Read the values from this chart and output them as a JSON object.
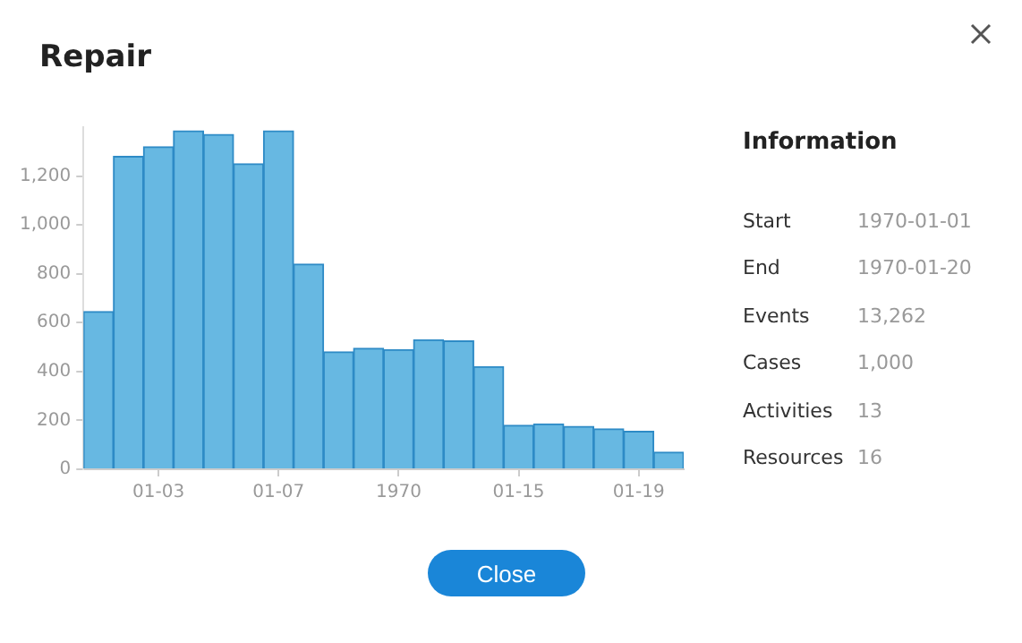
{
  "chart_data": [
    {
      "type": "bar",
      "title": "Repair",
      "color": "#67b8e2",
      "categories": [
        null,
        null,
        "01-03",
        null,
        null,
        null,
        "01-07",
        null,
        null,
        null,
        "1970",
        null,
        null,
        null,
        "01-15",
        null,
        null,
        null,
        "01-19",
        null
      ],
      "values": [
        645,
        1280,
        1320,
        1385,
        1370,
        1250,
        1385,
        840,
        480,
        495,
        490,
        530,
        525,
        420,
        180,
        185,
        175,
        165,
        155,
        70
      ],
      "ylim": [
        0,
        1400
      ],
      "yticks": [
        0,
        200,
        400,
        600,
        800,
        {
          "value": 1000,
          "label": "1,000"
        },
        {
          "value": 1200,
          "label": "1,200"
        }
      ],
      "annotations": [
        "Close"
      ]
    },
    {
      "type": "other",
      "title": "Information",
      "categories": [
        "Start",
        "End",
        "Events",
        "Cases",
        "Activities",
        "Resources"
      ],
      "value_labels": [
        "1970-01-01",
        "1970-01-20",
        "13,262",
        "1,000",
        "13",
        "16"
      ]
    }
  ]
}
